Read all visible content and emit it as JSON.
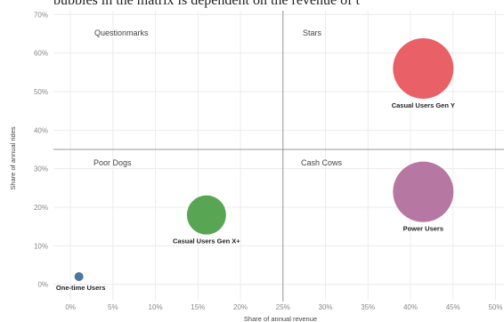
{
  "header_fragment": "bubbles in the matrix is dependent on the revenue of t",
  "chart_data": {
    "type": "scatter",
    "xlabel": "Share of annual revenue",
    "ylabel": "Share of annual rides",
    "xlim": [
      -2,
      51
    ],
    "ylim": [
      -4,
      71
    ],
    "x_ticks": [
      "0%",
      "5%",
      "10%",
      "15%",
      "20%",
      "25%",
      "30%",
      "35%",
      "40%",
      "45%",
      "50%"
    ],
    "x_tick_values": [
      0,
      5,
      10,
      15,
      20,
      25,
      30,
      35,
      40,
      45,
      50
    ],
    "y_ticks": [
      "0%",
      "10%",
      "20%",
      "30%",
      "40%",
      "50%",
      "60%",
      "70%"
    ],
    "y_tick_values": [
      0,
      10,
      20,
      30,
      40,
      50,
      60,
      70
    ],
    "grid": true,
    "divider_x": 25,
    "divider_y": 35,
    "quadrants": [
      "Questionmarks",
      "Stars",
      "Poor Dogs",
      "Cash Cows"
    ],
    "points": [
      {
        "label": "Casual Users Gen Y",
        "x": 41.5,
        "y": 56,
        "size": 17,
        "color": "#e8535a"
      },
      {
        "label": "Power Users",
        "x": 41.5,
        "y": 24,
        "size": 17,
        "color": "#b06c9a"
      },
      {
        "label": "Casual Users Gen X+",
        "x": 16,
        "y": 18,
        "size": 11,
        "color": "#4a9e44"
      },
      {
        "label": "One-time Users",
        "x": 1,
        "y": 2,
        "size": 2.5,
        "color": "#3d6a96"
      }
    ]
  }
}
